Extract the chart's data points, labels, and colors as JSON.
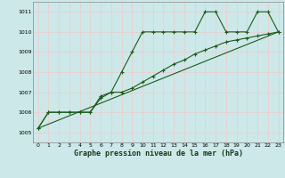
{
  "bg_color": "#cce8e8",
  "grid_color": "#e8d0d0",
  "line_color": "#1a5c1a",
  "ylabel_vals": [
    1005,
    1006,
    1007,
    1008,
    1009,
    1010,
    1011
  ],
  "xlabel_vals": [
    0,
    1,
    2,
    3,
    4,
    5,
    6,
    7,
    8,
    9,
    10,
    11,
    12,
    13,
    14,
    15,
    16,
    17,
    18,
    19,
    20,
    21,
    22,
    23
  ],
  "ylim": [
    1004.5,
    1011.5
  ],
  "xlim": [
    -0.5,
    23.5
  ],
  "title": "Graphe pression niveau de la mer (hPa)",
  "series1_x": [
    0,
    1,
    2,
    3,
    4,
    5,
    6,
    7,
    8,
    9,
    10,
    11,
    12,
    13,
    14,
    15,
    16,
    17,
    18,
    19,
    20,
    21,
    22,
    23
  ],
  "series1_y": [
    1005.2,
    1006.0,
    1006.0,
    1006.0,
    1006.0,
    1006.0,
    1006.8,
    1007.0,
    1008.0,
    1009.0,
    1010.0,
    1010.0,
    1010.0,
    1010.0,
    1010.0,
    1010.0,
    1011.0,
    1011.0,
    1010.0,
    1010.0,
    1010.0,
    1011.0,
    1011.0,
    1010.0
  ],
  "series2_x": [
    0,
    1,
    2,
    3,
    4,
    5,
    6,
    7,
    8,
    9,
    10,
    11,
    12,
    13,
    14,
    15,
    16,
    17,
    18,
    19,
    20,
    21,
    22,
    23
  ],
  "series2_y": [
    1005.2,
    1006.0,
    1006.0,
    1006.0,
    1006.0,
    1006.0,
    1006.7,
    1007.0,
    1007.0,
    1007.2,
    1007.5,
    1007.8,
    1008.1,
    1008.4,
    1008.6,
    1008.9,
    1009.1,
    1009.3,
    1009.5,
    1009.6,
    1009.7,
    1009.8,
    1009.9,
    1010.0
  ],
  "series3_x": [
    0,
    23
  ],
  "series3_y": [
    1005.2,
    1010.0
  ]
}
